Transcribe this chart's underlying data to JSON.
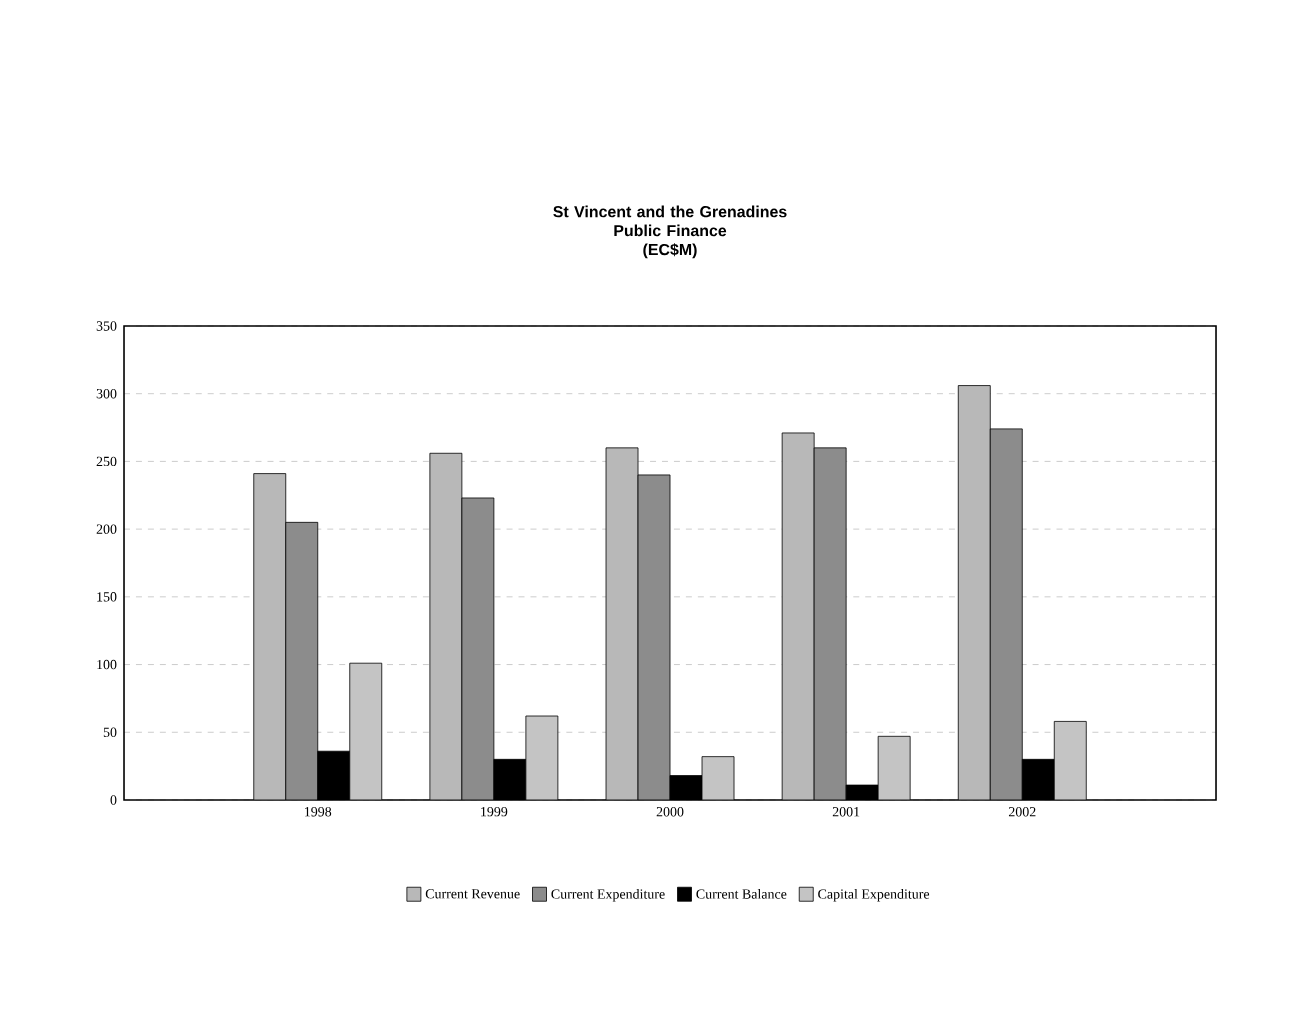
{
  "chart_data": {
    "type": "bar",
    "title": "St Vincent and the Grenadines\nPublic Finance\n(EC$M)",
    "categories": [
      "1998",
      "1999",
      "2000",
      "2001",
      "2002"
    ],
    "series": [
      {
        "name": "Current Revenue",
        "color": "#b8b8b8",
        "values": [
          241,
          256,
          260,
          271,
          306
        ]
      },
      {
        "name": "Current Expenditure",
        "color": "#8c8c8c",
        "values": [
          205,
          223,
          240,
          260,
          274
        ]
      },
      {
        "name": "Current Balance",
        "color": "#000000",
        "values": [
          36,
          30,
          18,
          11,
          30
        ]
      },
      {
        "name": "Capital Expenditure",
        "color": "#c4c4c4",
        "values": [
          101,
          62,
          32,
          47,
          58
        ]
      }
    ],
    "ylim": [
      0,
      350
    ],
    "yticks": [
      0,
      50,
      100,
      150,
      200,
      250,
      300,
      350
    ],
    "grid": "y",
    "legend": "bottom"
  }
}
